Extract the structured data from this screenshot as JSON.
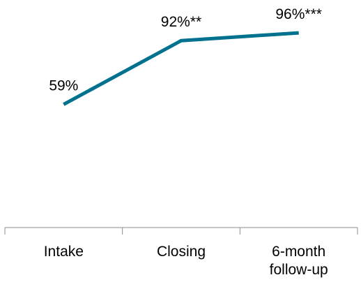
{
  "chart_data": {
    "type": "line",
    "categories": [
      "Intake",
      "Closing",
      "6-month follow-up"
    ],
    "category_lines": [
      [
        "Intake"
      ],
      [
        "Closing"
      ],
      [
        "6-month",
        "follow-up"
      ]
    ],
    "series": [
      {
        "values": [
          59,
          92,
          96
        ],
        "labels": [
          "59%",
          "92%**",
          "96%***"
        ],
        "color": "#00718f"
      }
    ],
    "ylim": [
      0,
      100
    ],
    "grid": false,
    "legend": "none",
    "axis_color": "#8c8c8c"
  }
}
